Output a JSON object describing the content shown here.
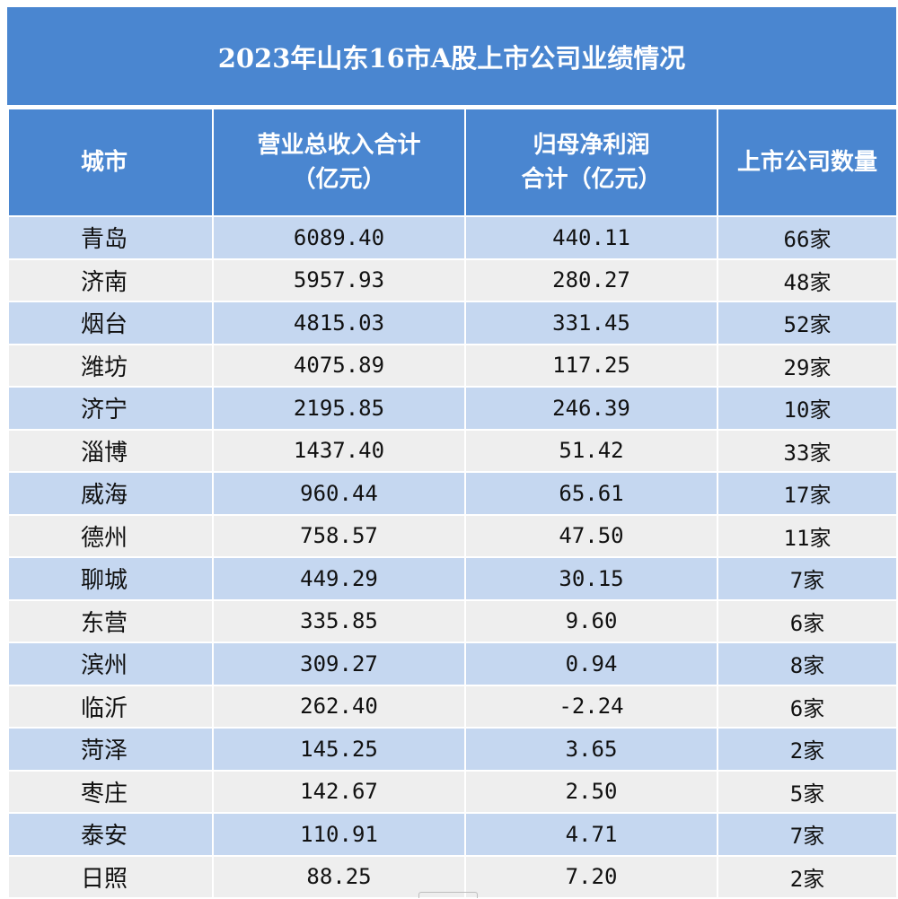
{
  "title": "2023年山东16市A股上市公司业绩情况",
  "headers": {
    "city": "城市",
    "revenue_line1": "营业总收入合计",
    "revenue_line2": "（亿元）",
    "profit_line1": "归母净利润",
    "profit_line2": "合计（亿元）",
    "count": "上市公司数量"
  },
  "rows": [
    {
      "city": "青岛",
      "revenue": "6089.40",
      "profit": "440.11",
      "count": "66家"
    },
    {
      "city": "济南",
      "revenue": "5957.93",
      "profit": "280.27",
      "count": "48家"
    },
    {
      "city": "烟台",
      "revenue": "4815.03",
      "profit": "331.45",
      "count": "52家"
    },
    {
      "city": "潍坊",
      "revenue": "4075.89",
      "profit": "117.25",
      "count": "29家"
    },
    {
      "city": "济宁",
      "revenue": "2195.85",
      "profit": "246.39",
      "count": "10家"
    },
    {
      "city": "淄博",
      "revenue": "1437.40",
      "profit": "51.42",
      "count": "33家"
    },
    {
      "city": "威海",
      "revenue": "960.44",
      "profit": "65.61",
      "count": "17家"
    },
    {
      "city": "德州",
      "revenue": "758.57",
      "profit": "47.50",
      "count": "11家"
    },
    {
      "city": "聊城",
      "revenue": "449.29",
      "profit": "30.15",
      "count": "7家"
    },
    {
      "city": "东营",
      "revenue": "335.85",
      "profit": "9.60",
      "count": "6家"
    },
    {
      "city": "滨州",
      "revenue": "309.27",
      "profit": "0.94",
      "count": "8家"
    },
    {
      "city": "临沂",
      "revenue": "262.40",
      "profit": "-2.24",
      "count": "6家"
    },
    {
      "city": "菏泽",
      "revenue": "145.25",
      "profit": "3.65",
      "count": "2家"
    },
    {
      "city": "枣庄",
      "revenue": "142.67",
      "profit": "2.50",
      "count": "5家"
    },
    {
      "city": "泰安",
      "revenue": "110.91",
      "profit": "4.71",
      "count": "7家"
    },
    {
      "city": "日照",
      "revenue": "88.25",
      "profit": "7.20",
      "count": "2家"
    }
  ],
  "colors": {
    "header_bg": "#4a86d0",
    "row_odd_bg": "#c5d7f0",
    "row_even_bg": "#eeeeee"
  }
}
